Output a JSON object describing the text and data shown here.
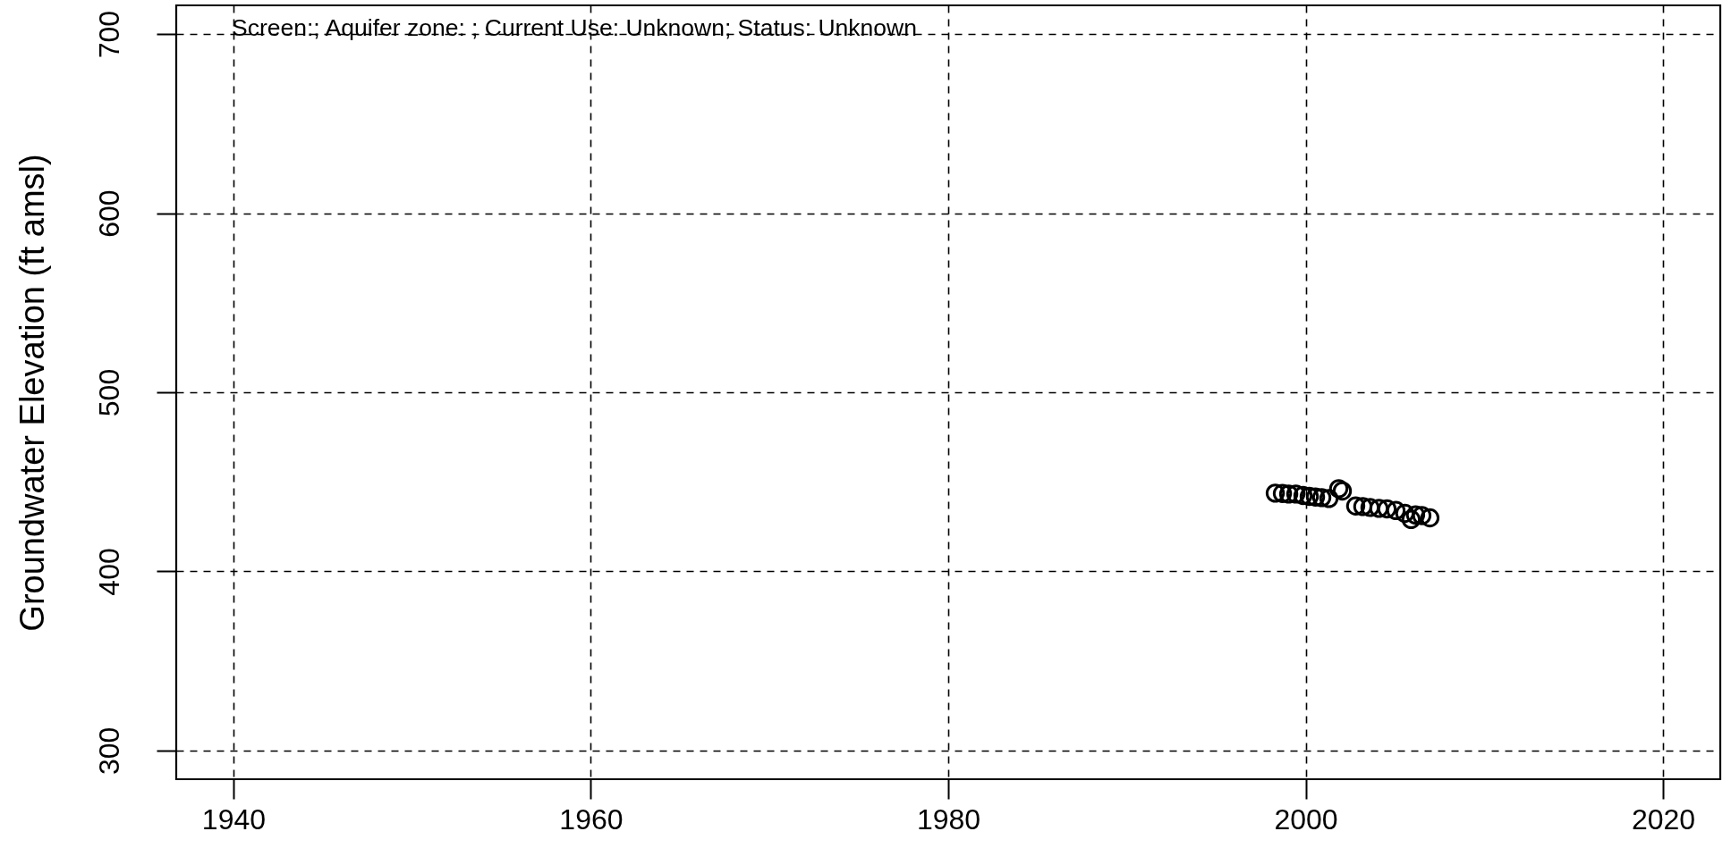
{
  "chart_data": {
    "type": "scatter",
    "ylabel": "Groundwater Elevation (ft amsl)",
    "annotations": [
      "Screen:; Aquifer zone: ; Current Use: Unknown; Status: Unknown"
    ],
    "x": [
      1998.3,
      1998.7,
      1999.05,
      1999.45,
      1999.85,
      2000.2,
      2000.55,
      2000.9,
      2001.3,
      2001.85,
      2002.05,
      2002.8,
      2003.2,
      2003.6,
      2004.1,
      2004.55,
      2005.05,
      2005.55,
      2005.9,
      2006.15,
      2006.5,
      2006.95
    ],
    "values": [
      443.7,
      443.5,
      443.2,
      443.2,
      442.4,
      441.9,
      441.5,
      441.2,
      440.7,
      446.2,
      444.9,
      436.5,
      436.2,
      435.7,
      435.2,
      434.9,
      434.0,
      432.4,
      429.0,
      431.5,
      431.2,
      429.9
    ],
    "color": "#000000",
    "marker": "circle",
    "xlim": [
      1936.8,
      2023.2
    ],
    "xticks": [
      1940,
      1960,
      1980,
      2000,
      2020
    ],
    "ylim": [
      284,
      716
    ],
    "yticks": [
      300,
      400,
      500,
      600,
      700
    ],
    "grid": true
  }
}
